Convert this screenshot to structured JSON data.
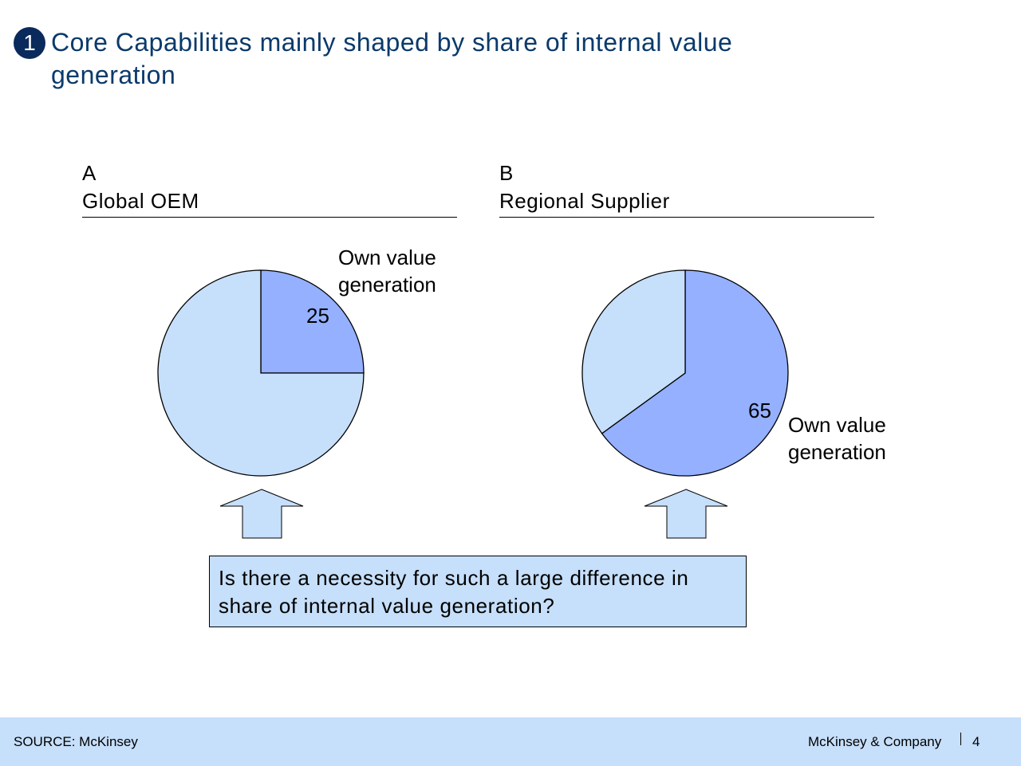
{
  "header": {
    "number": "1",
    "title": "Core Capabilities mainly shaped by share of internal value generation"
  },
  "chart_data": [
    {
      "type": "pie",
      "panel": "A",
      "title": "Global OEM",
      "categories": [
        "Own value generation",
        null
      ],
      "values": [
        25,
        75
      ],
      "colors": [
        "#94b0ff",
        "#c6dffa"
      ]
    },
    {
      "type": "pie",
      "panel": "B",
      "title": "Regional Supplier",
      "categories": [
        "Own value generation",
        null
      ],
      "values": [
        65,
        35
      ],
      "colors": [
        "#94b0ff",
        "#c6dffa"
      ]
    }
  ],
  "callout": "Is there a necessity for such a large difference in share of internal value generation?",
  "footer": {
    "source": "SOURCE: McKinsey",
    "company": "McKinsey & Company",
    "page": "4"
  }
}
